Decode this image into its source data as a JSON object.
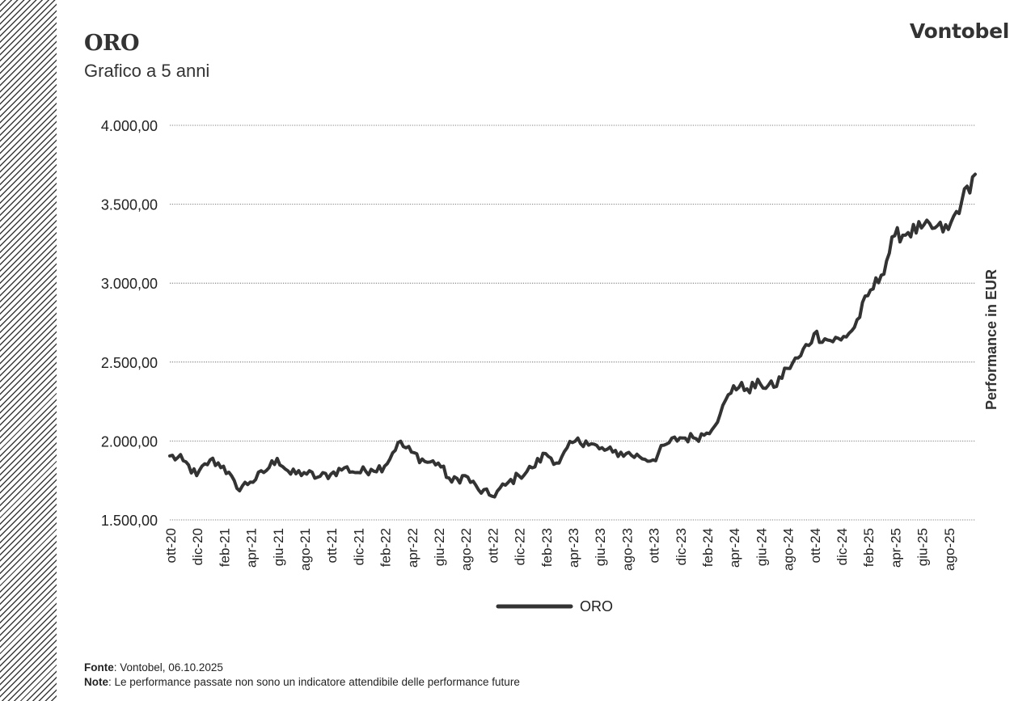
{
  "header": {
    "title": "ORO",
    "subtitle": "Grafico a 5 anni",
    "brand": "Vontobel"
  },
  "footer": {
    "source_label": "Fonte",
    "source_text": ": Vontobel, 06.10.2025",
    "note_label": "Note",
    "note_text": ": Le performance passate non sono un indicatore attendibile delle performance future"
  },
  "colors": {
    "line": "#333333",
    "grid": "#555555",
    "hatch": "#3a3a3a"
  },
  "chart_data": {
    "type": "line",
    "title": "ORO",
    "subtitle": "Grafico a 5 anni",
    "ylabel": "Performance in EUR",
    "ylim": [
      1500,
      4000
    ],
    "yticks": [
      1500,
      2000,
      2500,
      3000,
      3500,
      4000
    ],
    "ytick_labels": [
      "1.500,00",
      "2.000,00",
      "2.500,00",
      "3.000,00",
      "3.500,00",
      "4.000,00"
    ],
    "xtick_labels": [
      "ott-20",
      "dic-20",
      "feb-21",
      "apr-21",
      "giu-21",
      "ago-21",
      "ott-21",
      "dic-21",
      "feb-22",
      "apr-22",
      "giu-22",
      "ago-22",
      "ott-22",
      "dic-22",
      "feb-23",
      "apr-23",
      "giu-23",
      "ago-23",
      "ott-23",
      "dic-23",
      "feb-24",
      "apr-24",
      "giu-24",
      "ago-24",
      "ott-24",
      "dic-24",
      "feb-25",
      "apr-25",
      "giu-25",
      "ago-25"
    ],
    "x_axis_year_month": "bimonthly from ott-20 to ago-25, data to 06.10.2025",
    "grid": true,
    "legend_position": "bottom-center",
    "series": [
      {
        "name": "ORO",
        "x": [
          "2020-10",
          "2020-11",
          "2020-12",
          "2021-01",
          "2021-02",
          "2021-03",
          "2021-04",
          "2021-05",
          "2021-06",
          "2021-07",
          "2021-08",
          "2021-09",
          "2021-10",
          "2021-11",
          "2021-12",
          "2022-01",
          "2022-02",
          "2022-03",
          "2022-04",
          "2022-05",
          "2022-06",
          "2022-07",
          "2022-08",
          "2022-09",
          "2022-10",
          "2022-11",
          "2022-12",
          "2023-01",
          "2023-02",
          "2023-03",
          "2023-04",
          "2023-05",
          "2023-06",
          "2023-07",
          "2023-08",
          "2023-09",
          "2023-10",
          "2023-11",
          "2023-12",
          "2024-01",
          "2024-02",
          "2024-03",
          "2024-04",
          "2024-05",
          "2024-06",
          "2024-07",
          "2024-08",
          "2024-09",
          "2024-10",
          "2024-11",
          "2024-12",
          "2025-01",
          "2025-02",
          "2025-03",
          "2025-04",
          "2025-05",
          "2025-06",
          "2025-07",
          "2025-08",
          "2025-09",
          "2025-10"
        ],
        "values": [
          1905,
          1875,
          1780,
          1880,
          1840,
          1700,
          1740,
          1800,
          1890,
          1790,
          1800,
          1770,
          1790,
          1830,
          1800,
          1820,
          1840,
          1990,
          1930,
          1870,
          1860,
          1740,
          1780,
          1690,
          1650,
          1720,
          1780,
          1830,
          1920,
          1860,
          1990,
          2000,
          1950,
          1930,
          1920,
          1900,
          1880,
          1980,
          2020,
          2020,
          2050,
          2170,
          2350,
          2330,
          2360,
          2340,
          2460,
          2540,
          2680,
          2640,
          2640,
          2720,
          2920,
          3050,
          3300,
          3320,
          3350,
          3350,
          3340,
          3520,
          3690
        ]
      }
    ]
  }
}
